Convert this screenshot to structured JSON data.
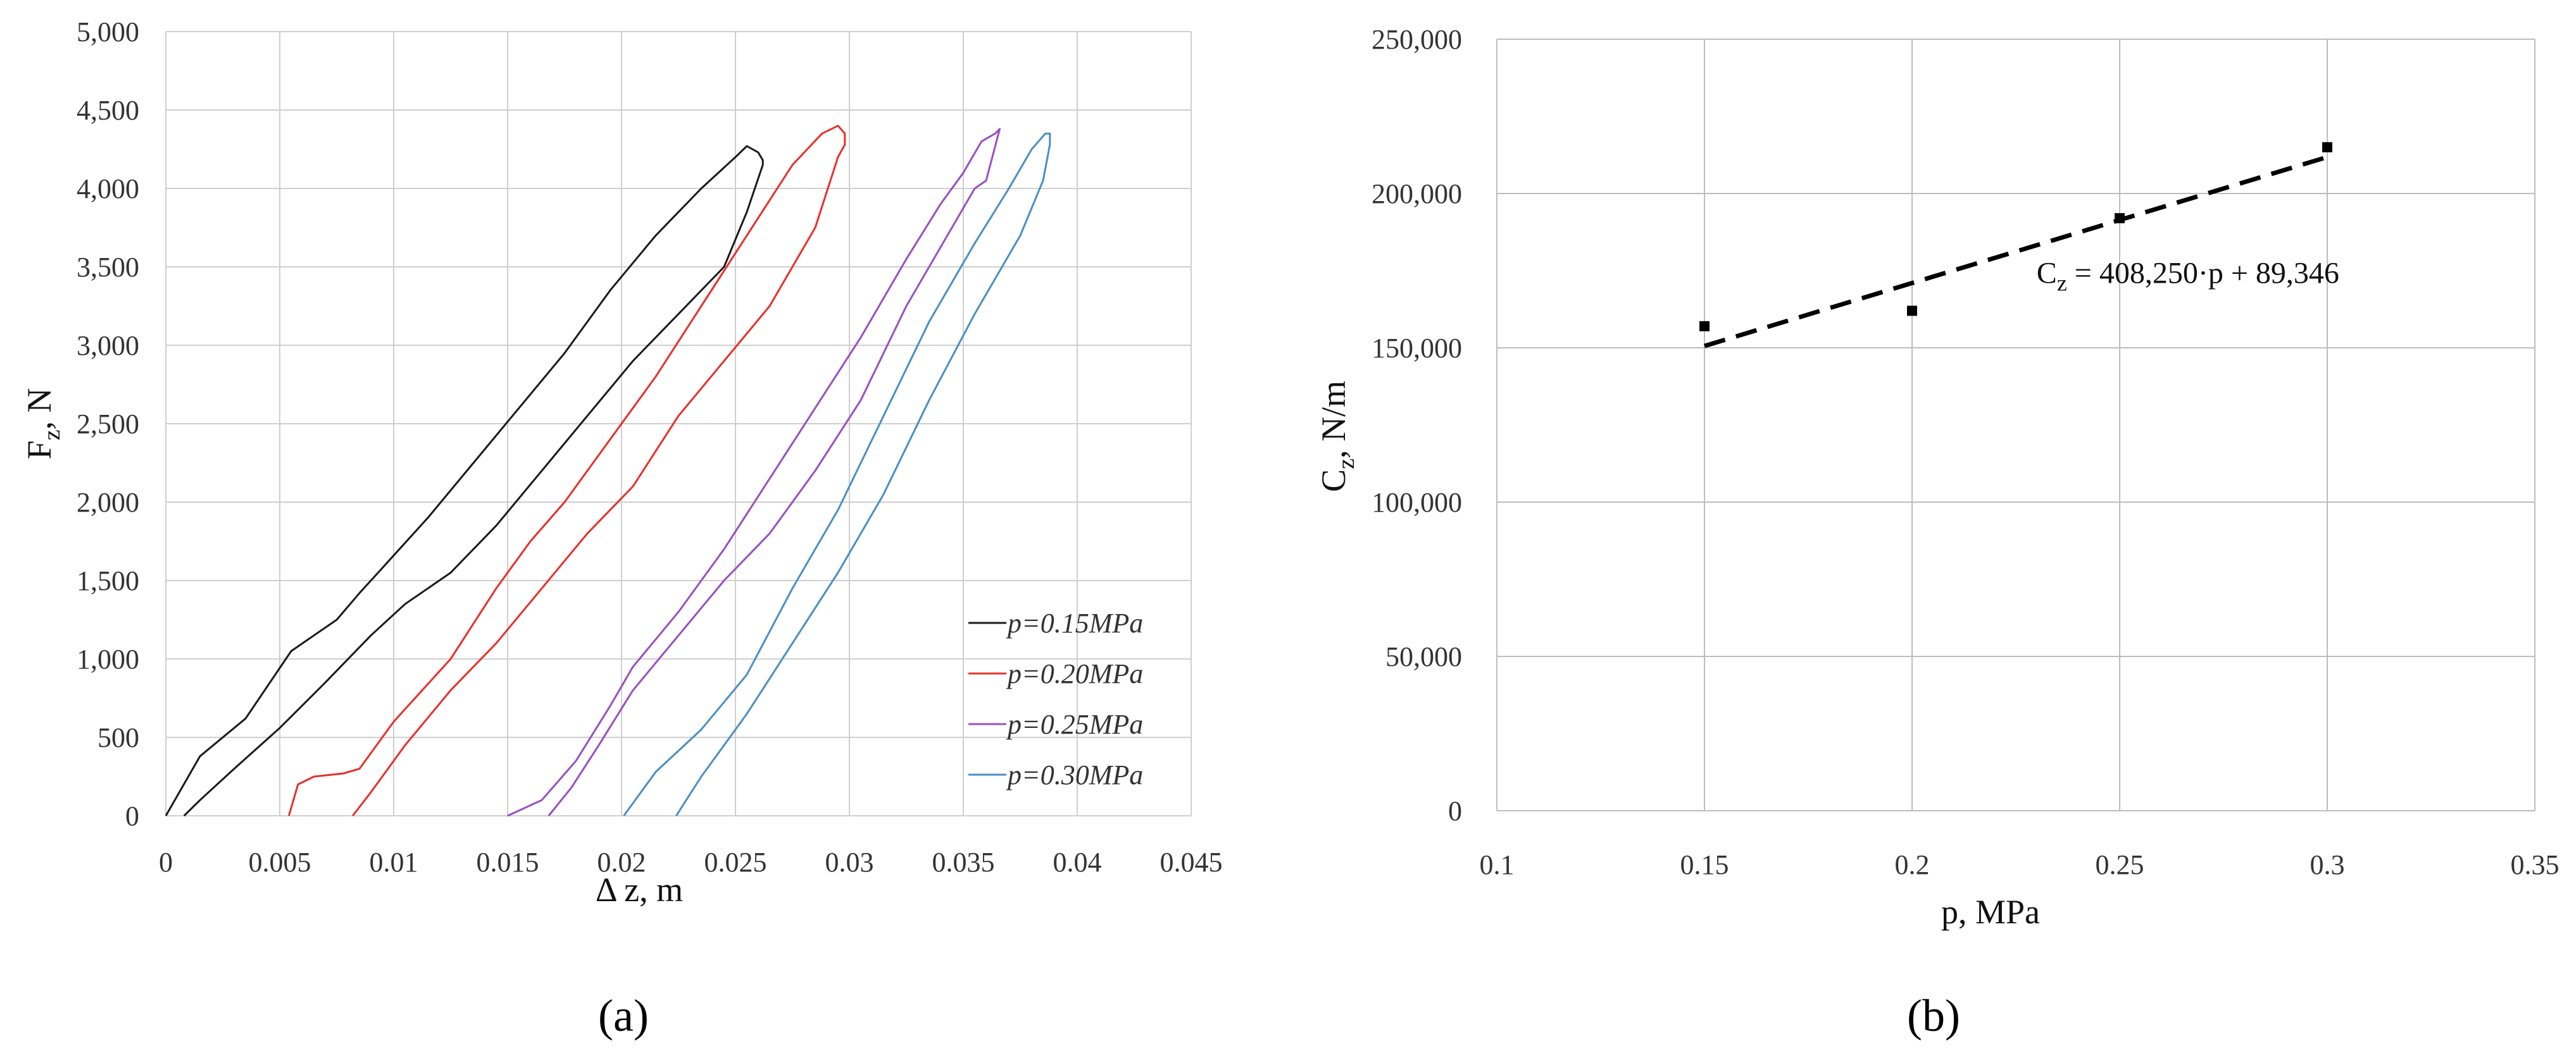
{
  "chart_data": [
    {
      "type": "line",
      "panel_label": "(a)",
      "xlabel": "Δ z, m",
      "ylabel_main": "F",
      "ylabel_sub": "z",
      "ylabel_rest": ", N",
      "xlim": [
        0,
        0.045
      ],
      "ylim": [
        0,
        5000
      ],
      "x_ticks": [
        0,
        0.005,
        0.01,
        0.015,
        0.02,
        0.025,
        0.03,
        0.035,
        0.04,
        0.045
      ],
      "x_tick_labels": [
        "0",
        "0.005",
        "0.01",
        "0.015",
        "0.02",
        "0.025",
        "0.03",
        "0.035",
        "0.04",
        "0.045"
      ],
      "y_ticks": [
        0,
        500,
        1000,
        1500,
        2000,
        2500,
        3000,
        3500,
        4000,
        4500,
        5000
      ],
      "y_tick_labels": [
        "0",
        "500",
        "1,000",
        "1,500",
        "2,000",
        "2,500",
        "3,000",
        "3,500",
        "4,000",
        "4,500",
        "5,000"
      ],
      "grid": true,
      "legend_position": "bottom-right",
      "series": [
        {
          "name": "p=0.15MPa",
          "color": "#1a1a1a",
          "x": [
            0.0,
            0.0015,
            0.0035,
            0.0055,
            0.0075,
            0.0085,
            0.0095,
            0.0115,
            0.0135,
            0.0155,
            0.0175,
            0.0195,
            0.0215,
            0.0235,
            0.025,
            0.0255,
            0.026,
            0.0262,
            0.0262,
            0.0255,
            0.0245,
            0.0225,
            0.0205,
            0.0185,
            0.0165,
            0.0145,
            0.0125,
            0.0105,
            0.009,
            0.007,
            0.005,
            0.003,
            0.0015,
            0.0008
          ],
          "y": [
            0,
            380,
            620,
            1050,
            1250,
            1420,
            1580,
            1900,
            2250,
            2600,
            2950,
            3350,
            3700,
            4000,
            4200,
            4270,
            4230,
            4180,
            4150,
            3850,
            3500,
            3200,
            2900,
            2550,
            2200,
            1850,
            1550,
            1350,
            1150,
            850,
            560,
            300,
            100,
            0
          ]
        },
        {
          "name": "p=0.20MPa",
          "color": "#e8302a",
          "x": [
            0.0054,
            0.0058,
            0.0065,
            0.0078,
            0.0085,
            0.01,
            0.0125,
            0.0145,
            0.016,
            0.0175,
            0.0195,
            0.0215,
            0.0235,
            0.0255,
            0.0275,
            0.0288,
            0.0295,
            0.0298,
            0.0298,
            0.0295,
            0.0285,
            0.0265,
            0.0245,
            0.0225,
            0.0205,
            0.0185,
            0.0165,
            0.0145,
            0.0125,
            0.0105,
            0.009,
            0.0082
          ],
          "y": [
            0,
            200,
            250,
            270,
            300,
            600,
            1000,
            1450,
            1750,
            2000,
            2400,
            2800,
            3250,
            3700,
            4150,
            4350,
            4400,
            4350,
            4280,
            4200,
            3750,
            3250,
            2900,
            2550,
            2100,
            1800,
            1450,
            1100,
            800,
            450,
            150,
            0
          ]
        },
        {
          "name": "p=0.25MPa",
          "color": "#9b4fc0",
          "x": [
            0.015,
            0.0165,
            0.018,
            0.0195,
            0.0205,
            0.0225,
            0.0245,
            0.0265,
            0.0285,
            0.0305,
            0.0325,
            0.034,
            0.035,
            0.0358,
            0.0364,
            0.0366,
            0.036,
            0.0355,
            0.0345,
            0.0325,
            0.0305,
            0.0285,
            0.0265,
            0.0245,
            0.0225,
            0.0205,
            0.019,
            0.0178,
            0.0168
          ],
          "y": [
            0,
            100,
            350,
            700,
            950,
            1300,
            1700,
            2150,
            2600,
            3050,
            3550,
            3900,
            4100,
            4300,
            4350,
            4380,
            4050,
            4000,
            3750,
            3250,
            2650,
            2200,
            1800,
            1500,
            1150,
            800,
            450,
            180,
            0
          ]
        },
        {
          "name": "p=0.30MPa",
          "color": "#4a8fc4",
          "x": [
            0.0201,
            0.0215,
            0.0235,
            0.0255,
            0.0275,
            0.0295,
            0.0315,
            0.0335,
            0.0355,
            0.037,
            0.038,
            0.0386,
            0.0388,
            0.0388,
            0.0385,
            0.0375,
            0.0355,
            0.0335,
            0.0315,
            0.0295,
            0.0275,
            0.0255,
            0.0235,
            0.0224
          ],
          "y": [
            0,
            280,
            550,
            900,
            1450,
            1950,
            2550,
            3150,
            3650,
            4000,
            4250,
            4350,
            4350,
            4280,
            4050,
            3700,
            3200,
            2650,
            2050,
            1550,
            1100,
            650,
            250,
            0
          ]
        }
      ]
    },
    {
      "type": "scatter",
      "panel_label": "(b)",
      "xlabel": "p, MPa",
      "ylabel_main": "C",
      "ylabel_sub": "z",
      "ylabel_rest": ", N/m",
      "xlim": [
        0.1,
        0.35
      ],
      "ylim": [
        0,
        250000
      ],
      "x_ticks": [
        0.1,
        0.15,
        0.2,
        0.25,
        0.3,
        0.35
      ],
      "x_tick_labels": [
        "0.1",
        "0.15",
        "0.2",
        "0.25",
        "0.3",
        "0.35"
      ],
      "y_ticks": [
        0,
        50000,
        100000,
        150000,
        200000,
        250000
      ],
      "y_tick_labels": [
        "0",
        "50,000",
        "100,000",
        "150,000",
        "200,000",
        "250,000"
      ],
      "grid": true,
      "points": {
        "x": [
          0.15,
          0.2,
          0.25,
          0.3
        ],
        "y": [
          157000,
          162000,
          192000,
          215000
        ],
        "color": "#000000"
      },
      "trendline": {
        "x": [
          0.15,
          0.3
        ],
        "y": [
          150584,
          211822
        ],
        "color": "#000000",
        "style": "dashed"
      },
      "annotation": {
        "prefix": "C",
        "sub": "z",
        "rest": " = 408,250·p + 89,346",
        "anchor_x": 0.23,
        "anchor_y": 171000
      }
    }
  ]
}
